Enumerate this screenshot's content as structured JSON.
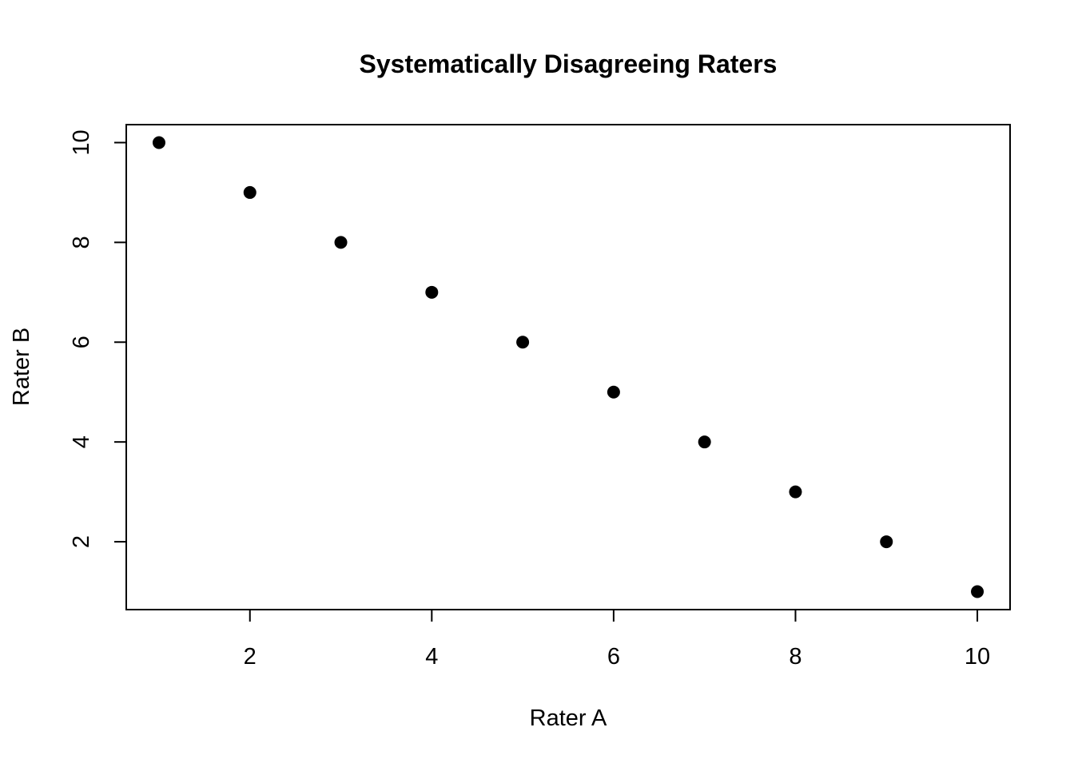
{
  "page": {
    "background": "#ffffff"
  },
  "chart_data": {
    "type": "scatter",
    "title": "Systematically Disagreeing Raters",
    "xlabel": "Rater A",
    "ylabel": "Rater B",
    "x": [
      1,
      2,
      3,
      4,
      5,
      6,
      7,
      8,
      9,
      10
    ],
    "series": [
      {
        "name": "Rater B",
        "values": [
          10,
          9,
          8,
          7,
          6,
          5,
          4,
          3,
          2,
          1
        ]
      }
    ],
    "xlim": [
      0.64,
      10.36
    ],
    "ylim": [
      0.64,
      10.36
    ],
    "xticks": [
      2,
      4,
      6,
      8,
      10
    ],
    "yticks": [
      2,
      4,
      6,
      8,
      10
    ],
    "grid": false,
    "legend_position": "none",
    "marker": "filled-circle",
    "point_color": "#000000",
    "axis_color": "#000000",
    "text_color": "#000000",
    "background": "#ffffff"
  }
}
